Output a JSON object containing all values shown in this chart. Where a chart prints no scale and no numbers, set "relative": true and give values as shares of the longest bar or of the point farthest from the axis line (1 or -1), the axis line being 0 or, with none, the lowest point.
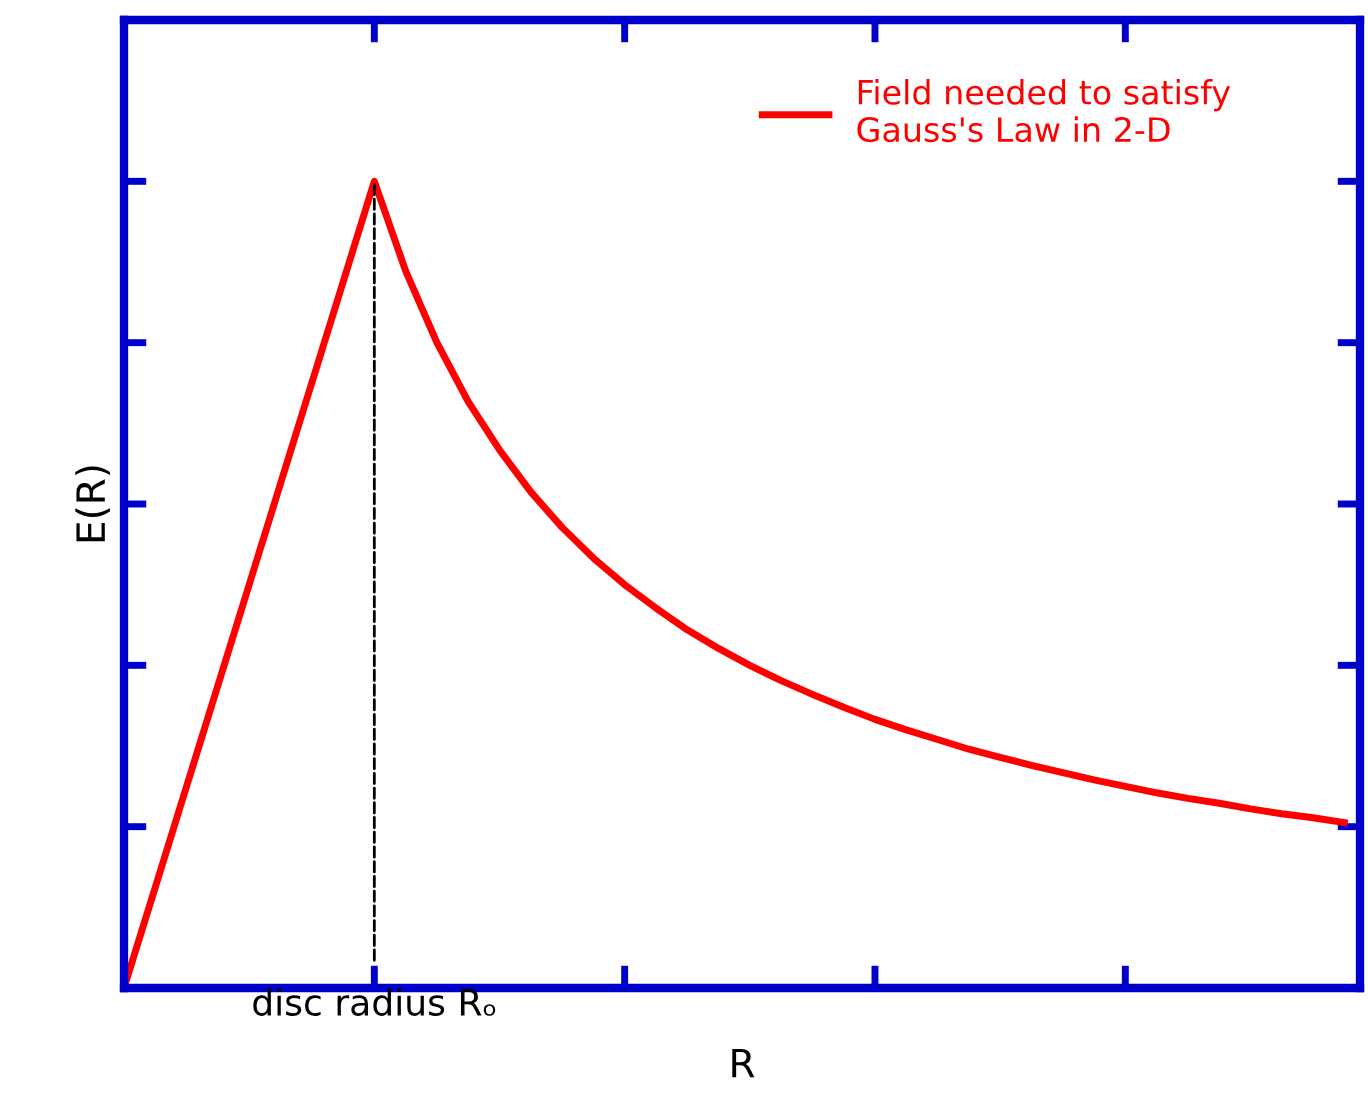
{
  "chart_data": {
    "type": "line",
    "relative": true,
    "xlabel": "R",
    "ylabel": "E(R)",
    "categories": [
      null,
      null,
      null,
      null,
      null,
      null,
      null,
      null,
      null,
      null,
      null,
      null,
      null,
      null,
      null,
      null,
      null,
      null,
      null,
      null,
      null,
      null,
      null,
      null,
      null,
      null,
      null,
      null,
      null,
      null,
      null,
      null,
      null,
      null,
      null,
      null,
      null,
      null,
      null,
      null
    ],
    "series": [
      {
        "name": "Field needed to satisfy\nGauss's Law in 2-D",
        "color": "#ff0000",
        "values": [
          0,
          0.125,
          0.25,
          0.375,
          0.5,
          0.625,
          0.75,
          0.875,
          1,
          0.889,
          0.8,
          0.727,
          0.667,
          0.615,
          0.571,
          0.533,
          0.5,
          0.471,
          0.444,
          0.421,
          0.4,
          0.381,
          0.364,
          0.348,
          0.333,
          0.32,
          0.308,
          0.296,
          0.286,
          0.276,
          0.267,
          0.258,
          0.25,
          0.242,
          0.235,
          0.229,
          0.222,
          0.216,
          0.211,
          0.205
        ]
      }
    ],
    "annotations": [
      "disc radius Rₒ"
    ],
    "legend": "top right",
    "grid": false,
    "marker": "none",
    "line_style": "solid"
  }
}
